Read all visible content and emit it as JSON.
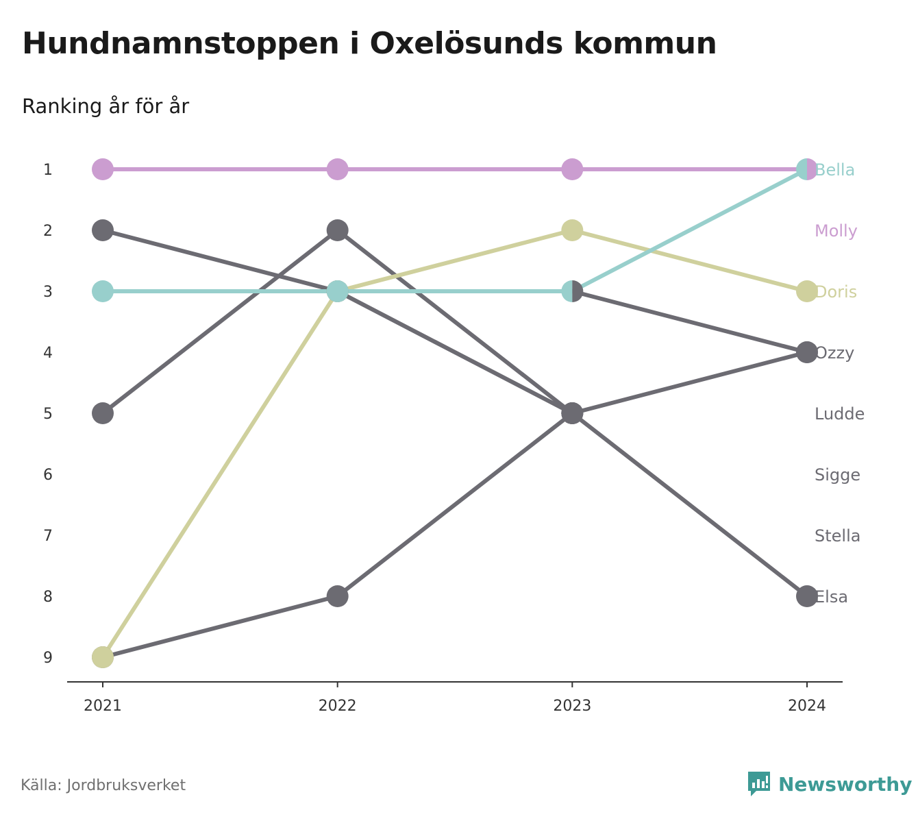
{
  "header": {
    "title": "Hundnamnstoppen i Oxelösunds kommun",
    "subtitle": "Ranking år för år"
  },
  "footer": {
    "source": "Källa: Jordbruksverket",
    "brand": "Newsworthy"
  },
  "colors": {
    "pink": "#cb9dd0",
    "teal": "#98cfcc",
    "olive": "#cfd09d",
    "gray": "#6c6b72",
    "axis": "#333333",
    "brand": "#3d9a95"
  },
  "chart_data": {
    "type": "line",
    "subtype": "bump",
    "title": "Hundnamnstoppen i Oxelösunds kommun",
    "subtitle": "Ranking år för år",
    "x": [
      "2021",
      "2022",
      "2023",
      "2024"
    ],
    "y_ticks": [
      "1",
      "2",
      "3",
      "4",
      "5",
      "6",
      "7",
      "8",
      "9"
    ],
    "ylim": [
      1,
      9
    ],
    "y_inverted": true,
    "grid": false,
    "legend": "direct labels right",
    "series": [
      {
        "name": "Stella",
        "values": [
          5,
          2,
          5,
          null
        ],
        "color": "gray"
      },
      {
        "name": "Sigge",
        "values": [
          2,
          3,
          5,
          null
        ],
        "color": "gray"
      },
      {
        "name": "Elsa",
        "values": [
          null,
          3,
          5,
          8
        ],
        "color": "gray"
      },
      {
        "name": "Ludde",
        "values": [
          9,
          8,
          5,
          4
        ],
        "color": "gray"
      },
      {
        "name": "Ozzy",
        "values": [
          null,
          null,
          3,
          4
        ],
        "color": "gray"
      },
      {
        "name": "Doris",
        "values": [
          9,
          3,
          2,
          3
        ],
        "color": "olive"
      },
      {
        "name": "Molly",
        "values": [
          1,
          1,
          1,
          1
        ],
        "color": "pink"
      },
      {
        "name": "Bella",
        "values": [
          3,
          3,
          3,
          1
        ],
        "color": "teal"
      }
    ],
    "end_labels": [
      {
        "name": "Bella",
        "rank": 1,
        "color": "teal"
      },
      {
        "name": "Molly",
        "rank": 2,
        "color": "pink"
      },
      {
        "name": "Doris",
        "rank": 3,
        "color": "olive"
      },
      {
        "name": "Ozzy",
        "rank": 4,
        "color": "gray"
      },
      {
        "name": "Ludde",
        "rank": 5,
        "color": "gray"
      },
      {
        "name": "Sigge",
        "rank": 6,
        "color": "gray"
      },
      {
        "name": "Stella",
        "rank": 7,
        "color": "gray"
      },
      {
        "name": "Elsa",
        "rank": 8,
        "color": "gray"
      }
    ],
    "split_markers": [
      {
        "x": "2023",
        "rank": 3,
        "left_color": "teal",
        "right_color": "gray"
      },
      {
        "x": "2024",
        "rank": 1,
        "left_color": "teal",
        "right_color": "pink"
      }
    ]
  }
}
